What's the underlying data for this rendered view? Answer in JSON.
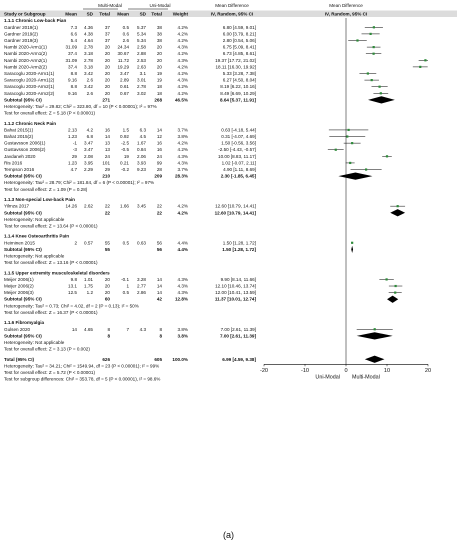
{
  "figure_label": "(a)",
  "chart_data": {
    "type": "forest",
    "columns": [
      "Study or Subgroup",
      "Mean",
      "SD",
      "Total",
      "Mean",
      "SD",
      "Total",
      "Weight",
      "Mean Difference IV, Random, 95% CI"
    ],
    "group_headers": {
      "left": "Multi-Modal",
      "right": "Uni-Modal",
      "md_text": "Mean Difference",
      "md_text_sub": "IV, Random, 95% CI",
      "md_plot": "Mean Difference",
      "md_plot_sub": "IV, Random, 95% CI"
    },
    "header_row": {
      "study": "Study or Subgroup",
      "mean1": "Mean",
      "sd1": "SD",
      "total1": "Total",
      "mean2": "Mean",
      "sd2": "SD",
      "total2": "Total",
      "weight": "Weight"
    },
    "axis": {
      "xlim": [
        -20,
        20
      ],
      "ticks": [
        "-20",
        "-10",
        "0",
        "10",
        "20"
      ],
      "favours_left": "Uni-Modal",
      "favours_right": "Multi-Modal"
    },
    "subgroups": [
      {
        "title": "1.1.1 Chronic Low-back Pian",
        "studies": [
          {
            "name": "Gardner 2019(1)",
            "m1": "7.3",
            "sd1": "4.36",
            "n1": "37",
            "m2": "0.5",
            "sd2": "5.37",
            "n2": "38",
            "w": "4.2%",
            "ci": "6.80 [4.59, 9.01]",
            "est": 6.8,
            "lo": 4.59,
            "hi": 9.01
          },
          {
            "name": "Gardner 2019(2)",
            "m1": "6.6",
            "sd1": "4.38",
            "n1": "37",
            "m2": "0.6",
            "sd2": "5.34",
            "n2": "38",
            "w": "4.2%",
            "ci": "6.00 [3.79, 8.21]",
            "est": 6.0,
            "lo": 3.79,
            "hi": 8.21
          },
          {
            "name": "Gardner 2019(3)",
            "m1": "5.4",
            "sd1": "4.64",
            "n1": "37",
            "m2": "2.6",
            "sd2": "5.34",
            "n2": "38",
            "w": "4.2%",
            "ci": "2.80 [0.54, 5.06]",
            "est": 2.8,
            "lo": 0.54,
            "hi": 5.06
          },
          {
            "name": "Nambi 2020-Arm1(1)",
            "m1": "31.09",
            "sd1": "2.78",
            "n1": "20",
            "m2": "24.34",
            "sd2": "2.58",
            "n2": "20",
            "w": "4.3%",
            "ci": "6.75 [5.09, 8.41]",
            "est": 6.75,
            "lo": 5.09,
            "hi": 8.41
          },
          {
            "name": "Nambi 2020-Arm1(2)",
            "m1": "37.4",
            "sd1": "3.18",
            "n1": "20",
            "m2": "30.67",
            "sd2": "2.88",
            "n2": "20",
            "w": "4.2%",
            "ci": "6.73 [4.85, 8.61]",
            "est": 6.73,
            "lo": 4.85,
            "hi": 8.61
          },
          {
            "name": "Nambi 2020-Arm2(1)",
            "m1": "31.09",
            "sd1": "2.78",
            "n1": "20",
            "m2": "11.72",
            "sd2": "2.53",
            "n2": "20",
            "w": "4.3%",
            "ci": "19.37 [17.72, 21.02]",
            "est": 19.37,
            "lo": 17.72,
            "hi": 21.02
          },
          {
            "name": "Nambi 2020-Arm2(2)",
            "m1": "37.4",
            "sd1": "3.18",
            "n1": "20",
            "m2": "19.29",
            "sd2": "2.63",
            "n2": "20",
            "w": "4.2%",
            "ci": "18.11 [16.30, 19.92]",
            "est": 18.11,
            "lo": 16.3,
            "hi": 19.92
          },
          {
            "name": "Saracoglu 2020-Arm1(1)",
            "m1": "8.8",
            "sd1": "3.42",
            "n1": "20",
            "m2": "3.47",
            "sd2": "3.1",
            "n2": "19",
            "w": "4.2%",
            "ci": "5.33 [3.28, 7.38]",
            "est": 5.33,
            "lo": 3.28,
            "hi": 7.38
          },
          {
            "name": "Saracoglu 2020-Arm1(2)",
            "m1": "9.16",
            "sd1": "2.6",
            "n1": "20",
            "m2": "2.89",
            "sd2": "3.01",
            "n2": "19",
            "w": "4.3%",
            "ci": "6.27 [4.50, 8.04]",
            "est": 6.27,
            "lo": 4.5,
            "hi": 8.04
          },
          {
            "name": "Saracoglu 2020-Arm2(1)",
            "m1": "8.8",
            "sd1": "3.42",
            "n1": "20",
            "m2": "0.61",
            "sd2": "2.78",
            "n2": "18",
            "w": "4.2%",
            "ci": "8.19 [6.22, 10.16]",
            "est": 8.19,
            "lo": 6.22,
            "hi": 10.16
          },
          {
            "name": "Saracoglu 2020-Arm2(2)",
            "m1": "9.16",
            "sd1": "2.6",
            "n1": "20",
            "m2": "0.67",
            "sd2": "3.02",
            "n2": "18",
            "w": "4.2%",
            "ci": "8.49 [6.69, 10.29]",
            "est": 8.49,
            "lo": 6.69,
            "hi": 10.29
          }
        ],
        "subtotal": {
          "label": "Subtotal (95% CI)",
          "n1": "271",
          "n2": "268",
          "w": "46.5%",
          "ci": "8.64 [5.37, 11.91]",
          "est": 8.64,
          "lo": 5.37,
          "hi": 11.91
        },
        "het": "Heterogeneity: Tau² = 29.82; Chi² = 323.80, df = 10 (P < 0.00001); I² = 97%",
        "overall": "Test for overall effect: Z = 5.18 (P < 0.00001)"
      },
      {
        "title": "1.1.2 Chronic Neck Pain",
        "studies": [
          {
            "name": "Bahat 2015(1)",
            "m1": "2.13",
            "sd1": "4.2",
            "n1": "16",
            "m2": "1.5",
            "sd2": "6.3",
            "n2": "14",
            "w": "3.7%",
            "ci": "0.63 [-4.18, 5.44]",
            "est": 0.63,
            "lo": -4.18,
            "hi": 5.44
          },
          {
            "name": "Bahat 2015(2)",
            "m1": "1.23",
            "sd1": "6.8",
            "n1": "14",
            "m2": "0.92",
            "sd2": "4.5",
            "n2": "12",
            "w": "3.8%",
            "ci": "0.31 [-4.07, 4.69]",
            "est": 0.31,
            "lo": -4.07,
            "hi": 4.69
          },
          {
            "name": "Gustavsson 2006(1)",
            "m1": "-1",
            "sd1": "3.47",
            "n1": "13",
            "m2": "-2.5",
            "sd2": "1.67",
            "n2": "16",
            "w": "4.2%",
            "ci": "1.50 [-0.56, 3.56]",
            "est": 1.5,
            "lo": -0.56,
            "hi": 3.56
          },
          {
            "name": "Gustavsson 2006(2)",
            "m1": "-3",
            "sd1": "3.47",
            "n1": "13",
            "m2": "-0.5",
            "sd2": "0.84",
            "n2": "16",
            "w": "4.2%",
            "ci": "-2.50 [-4.43, -0.57]",
            "est": -2.5,
            "lo": -4.43,
            "hi": -0.57
          },
          {
            "name": "Javdaneh 2020",
            "m1": "29",
            "sd1": "2.08",
            "n1": "24",
            "m2": "19",
            "sd2": "2.06",
            "n2": "24",
            "w": "4.3%",
            "ci": "10.00 [8.83, 11.17]",
            "est": 10.0,
            "lo": 8.83,
            "hi": 11.17
          },
          {
            "name": "Ris 2016",
            "m1": "1.23",
            "sd1": "3.95",
            "n1": "101",
            "m2": "0.21",
            "sd2": "3.93",
            "n2": "99",
            "w": "4.3%",
            "ci": "1.02 [-0.07, 2.11]",
            "est": 1.02,
            "lo": -0.07,
            "hi": 2.11
          },
          {
            "name": "Tempson 2016",
            "m1": "4.7",
            "sd1": "2.29",
            "n1": "29",
            "m2": "-0.2",
            "sd2": "9.23",
            "n2": "28",
            "w": "3.7%",
            "ci": "4.90 [1.11, 8.69]",
            "est": 4.9,
            "lo": 1.11,
            "hi": 8.69
          }
        ],
        "subtotal": {
          "label": "Subtotal (95% CI)",
          "n1": "210",
          "n2": "209",
          "w": "28.3%",
          "ci": "2.30 [-1.85, 6.45]",
          "est": 2.3,
          "lo": -1.85,
          "hi": 6.45
        },
        "het": "Heterogeneity: Tau² = 28.79; Chi² = 181.84, df = 6 (P < 0.00001); I² = 97%",
        "overall": "Test for overall effect: Z = 1.09 (P = 0.28)"
      },
      {
        "title": "1.1.3 Non-special Low-back Pain",
        "studies": [
          {
            "name": "Yilmza 2017",
            "m1": "14.26",
            "sd1": "2.62",
            "n1": "22",
            "m2": "1.66",
            "sd2": "3.45",
            "n2": "22",
            "w": "4.2%",
            "ci": "12.60 [10.79, 14.41]",
            "est": 12.6,
            "lo": 10.79,
            "hi": 14.41
          }
        ],
        "subtotal": {
          "label": "Subtotal (95% CI)",
          "n1": "22",
          "n2": "22",
          "w": "4.2%",
          "ci": "12.60 [10.79, 14.41]",
          "est": 12.6,
          "lo": 10.79,
          "hi": 14.41
        },
        "het": "Heterogeneity: Not applicable",
        "overall": "Test for overall effect: Z = 13.64 (P < 0.00001)"
      },
      {
        "title": "1.1.4 Knee Osteoarthritis Pain",
        "studies": [
          {
            "name": "Heiminen 2015",
            "m1": "2",
            "sd1": "0.57",
            "n1": "55",
            "m2": "0.5",
            "sd2": "0.63",
            "n2": "56",
            "w": "4.4%",
            "ci": "1.50 [1.28, 1.72]",
            "est": 1.5,
            "lo": 1.28,
            "hi": 1.72
          }
        ],
        "subtotal": {
          "label": "Subtotal (95% CI)",
          "n1": "55",
          "n2": "56",
          "w": "4.4%",
          "ci": "1.50 [1.28, 1.72]",
          "est": 1.5,
          "lo": 1.28,
          "hi": 1.72
        },
        "het": "Heterogeneity: Not applicable",
        "overall": "Test for overall effect: Z = 13.16 (P < 0.00001)"
      },
      {
        "title": "1.1.5 Upper extremity musculoskeletal disorders",
        "studies": [
          {
            "name": "Meijer 2006(1)",
            "m1": "9.8",
            "sd1": "1.01",
            "n1": "20",
            "m2": "-0.1",
            "sd2": "3.28",
            "n2": "14",
            "w": "4.3%",
            "ci": "9.90 [8.14, 11.66]",
            "est": 9.9,
            "lo": 8.14,
            "hi": 11.66
          },
          {
            "name": "Meijer 2006(2)",
            "m1": "13.1",
            "sd1": "1.75",
            "n1": "20",
            "m2": "1",
            "sd2": "2.77",
            "n2": "14",
            "w": "4.3%",
            "ci": "12.10 [10.46, 13.74]",
            "est": 12.1,
            "lo": 10.46,
            "hi": 13.74
          },
          {
            "name": "Meijer 2006(3)",
            "m1": "12.5",
            "sd1": "1.2",
            "n1": "20",
            "m2": "0.5",
            "sd2": "2.86",
            "n2": "14",
            "w": "4.3%",
            "ci": "12.00 [10.41, 13.59]",
            "est": 12.0,
            "lo": 10.41,
            "hi": 13.59
          }
        ],
        "subtotal": {
          "label": "Subtotal (95% CI)",
          "n1": "60",
          "n2": "42",
          "w": "12.8%",
          "ci": "11.37 [10.01, 12.74]",
          "est": 11.37,
          "lo": 10.01,
          "hi": 12.74
        },
        "het": "Heterogeneity: Tau² = 0.73; Chi² = 4.02, df = 2 (P = 0.13); I² = 50%",
        "overall": "Test for overall effect: Z = 16.37 (P < 0.00001)"
      },
      {
        "title": "1.1.6 Fibromyalgia",
        "studies": [
          {
            "name": "Gulsen 2020",
            "m1": "14",
            "sd1": "4.65",
            "n1": "8",
            "m2": "7",
            "sd2": "4.3",
            "n2": "8",
            "w": "3.8%",
            "ci": "7.00 [2.61, 11.39]",
            "est": 7.0,
            "lo": 2.61,
            "hi": 11.39
          }
        ],
        "subtotal": {
          "label": "Subtotal (95% CI)",
          "n1": "8",
          "n2": "8",
          "w": "3.8%",
          "ci": "7.00 [2.61, 11.39]",
          "est": 7.0,
          "lo": 2.61,
          "hi": 11.39
        },
        "het": "Heterogeneity: Not applicable",
        "overall": "Test for overall effect: Z = 3.13 (P = 0.002)"
      }
    ],
    "total": {
      "label": "Total (95% CI)",
      "n1": "626",
      "n2": "605",
      "w": "100.0%",
      "ci": "6.99 [4.59, 9.38]",
      "est": 6.99,
      "lo": 4.59,
      "hi": 9.38
    },
    "footer": [
      "Heterogeneity: Tau² = 34.21; Chi² = 1549.94, df = 23 (P < 0.00001); I² = 99%",
      "Test for overall effect: Z = 5.72 (P < 0.00001)",
      "Test for subgroup differences: Chi² = 353.78, df = 5 (P < 0.00001), I² = 98.6%"
    ],
    "colors": {
      "study_marker": "#2e8b3a",
      "diamond": "#000000",
      "text": "#111111",
      "lines": "#000000"
    }
  }
}
